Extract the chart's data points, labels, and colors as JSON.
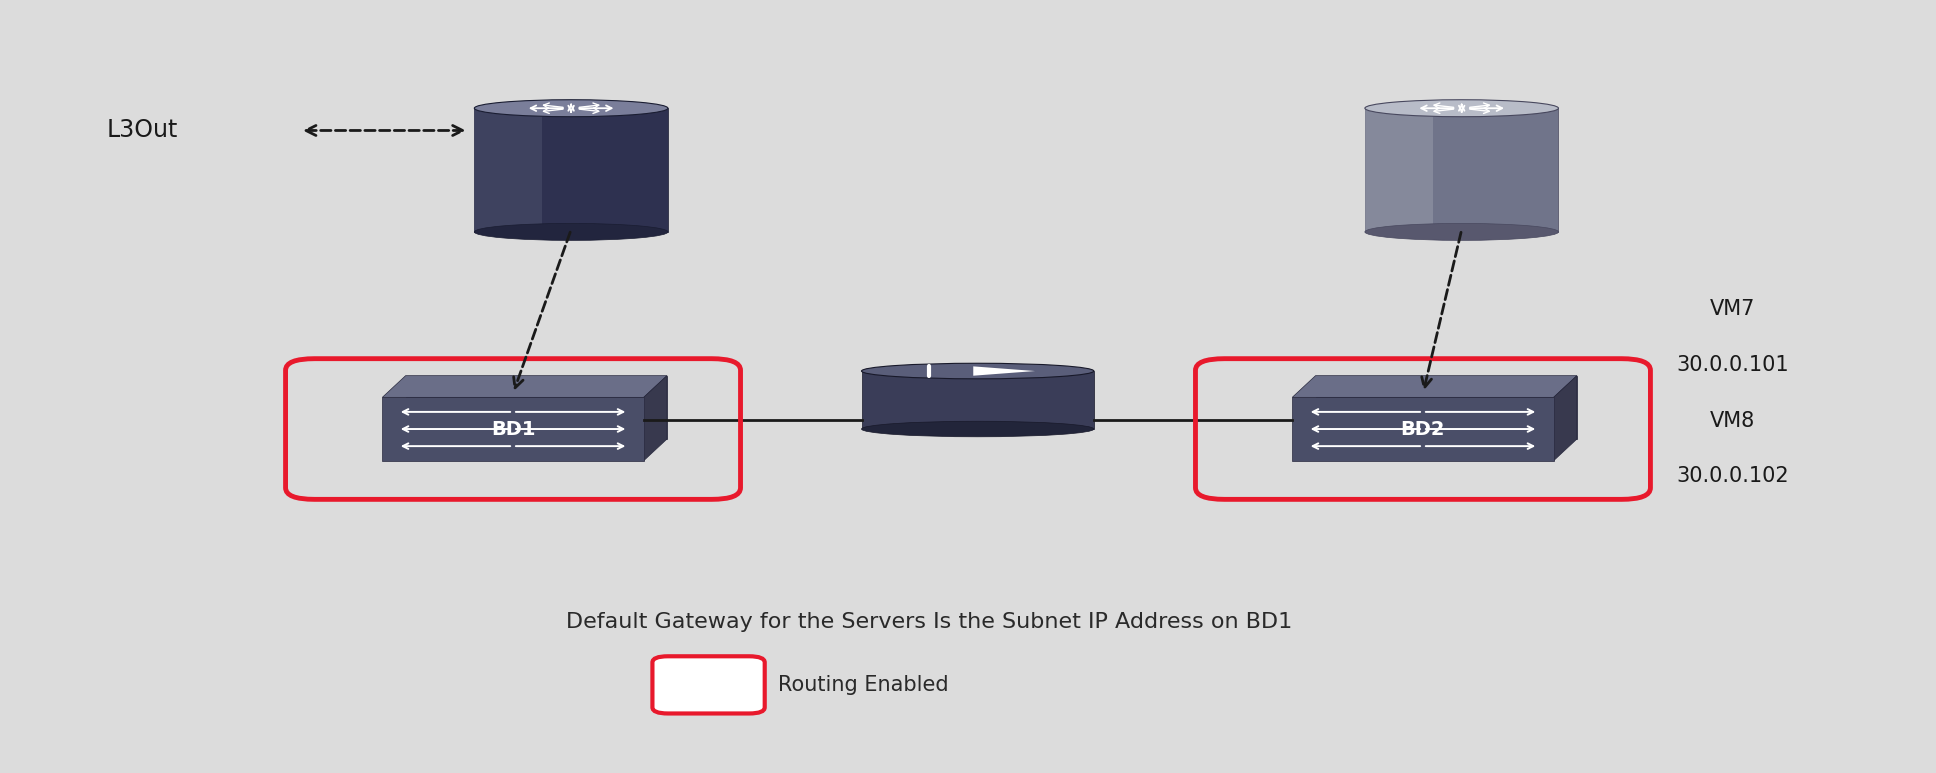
{
  "bg_color": "#dcdcdc",
  "title_text": "Default Gateway for the Servers Is the Subnet IP Address on BD1",
  "legend_text": "Routing Enabled",
  "l3out_label": "L3Out",
  "bd1_label": "BD1",
  "bd2_label": "BD2",
  "vm_labels": [
    "VM7",
    "30.0.0.101",
    "VM8",
    "30.0.0.102"
  ],
  "red_color": "#e8192c",
  "text_color": "#2a2a2a",
  "r1x": 0.295,
  "r1y": 0.7,
  "r2x": 0.755,
  "r2y": 0.7,
  "bd1x": 0.265,
  "bd1y": 0.445,
  "bd2x": 0.735,
  "bd2y": 0.445,
  "gotox": 0.505,
  "gotoy": 0.445,
  "router1_dark": true,
  "router2_dark": false
}
